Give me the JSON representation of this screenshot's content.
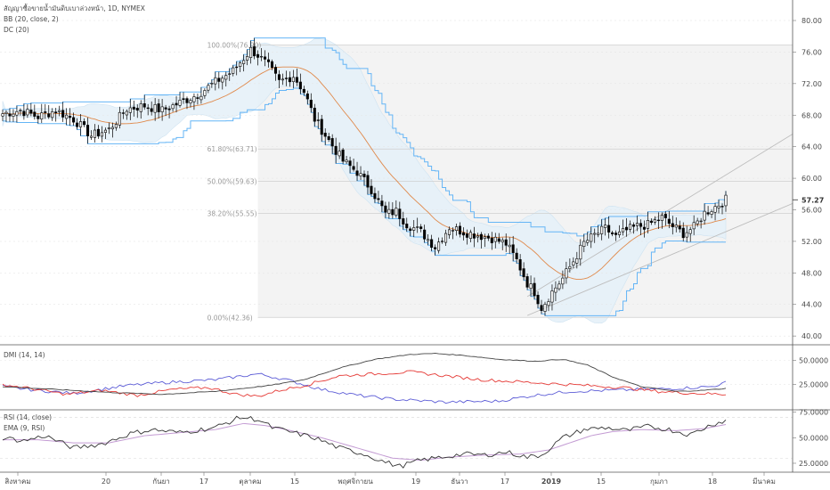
{
  "colors": {
    "up_candle": "#ffffff",
    "down_candle": "#000000",
    "bb_fill": "#e4f0f8",
    "donchian_line": "#64b5f6",
    "basis_line": "#e08a4c",
    "plus_di": "#5b5bd6",
    "minus_di": "#e53935",
    "adx": "#444444",
    "rsi": "#333333",
    "rsi_ema": "#c39bd3",
    "fib_box": "#f3f3f3",
    "channel": "#bdbdbd"
  },
  "chart_data": [
    {
      "type": "candlestick",
      "title": "สัญญาซื้อขายน้ำมันดิบเบาล่วงหน้า, 1D, NYMEX",
      "indicators": [
        "BB (20, close, 2)",
        "DC (20)"
      ],
      "y_axis": {
        "range": [
          39,
          82.6
        ],
        "ticks": [
          "40.00",
          "44.00",
          "48.00",
          "52.00",
          "56.00",
          "60.00",
          "64.00",
          "68.00",
          "72.00",
          "76.00",
          "80.00"
        ],
        "current_price": "57.27"
      },
      "x_axis_labels": [
        "สิงหาคม",
        "20",
        "กันยา",
        "17",
        "ตุลาคม",
        "15",
        "พฤศจิกายน",
        "19",
        "ธันวา",
        "17",
        "2019",
        "15",
        "กุมภา",
        "18",
        "มีนาคม"
      ],
      "fibonacci": [
        {
          "label": "100.00%(76.90)",
          "price": 76.9
        },
        {
          "label": "61.80%(63.71)",
          "price": 63.71
        },
        {
          "label": "50.00%(59.63)",
          "price": 59.63
        },
        {
          "label": "38.20%(55.55)",
          "price": 55.55
        },
        {
          "label": "0.00%(42.36)",
          "price": 42.36
        }
      ],
      "close_anchors": [
        [
          0,
          68.2
        ],
        [
          5,
          68.6
        ],
        [
          10,
          67.8
        ],
        [
          15,
          68.6
        ],
        [
          20,
          67.5
        ],
        [
          25,
          65.4
        ],
        [
          30,
          66.2
        ],
        [
          35,
          68.8
        ],
        [
          40,
          69.2
        ],
        [
          45,
          68.6
        ],
        [
          50,
          69.6
        ],
        [
          55,
          70.6
        ],
        [
          60,
          72.2
        ],
        [
          65,
          73.6
        ],
        [
          70,
          76.3
        ],
        [
          72,
          75.6
        ],
        [
          75,
          74.2
        ],
        [
          78,
          72.2
        ],
        [
          82,
          73.0
        ],
        [
          85,
          71.0
        ],
        [
          88,
          67.5
        ],
        [
          92,
          64.8
        ],
        [
          96,
          62.2
        ],
        [
          100,
          60.8
        ],
        [
          104,
          58.6
        ],
        [
          108,
          55.5
        ],
        [
          111,
          55.8
        ],
        [
          114,
          54.2
        ],
        [
          118,
          53.2
        ],
        [
          122,
          51.3
        ],
        [
          126,
          53.8
        ],
        [
          130,
          53.2
        ],
        [
          134,
          52.8
        ],
        [
          138,
          52.4
        ],
        [
          142,
          51.7
        ],
        [
          145,
          49.6
        ],
        [
          148,
          46.7
        ],
        [
          150,
          45.6
        ],
        [
          152,
          43.6
        ],
        [
          155,
          45.6
        ],
        [
          158,
          47.3
        ],
        [
          161,
          49.5
        ],
        [
          164,
          51.8
        ],
        [
          167,
          52.8
        ],
        [
          170,
          53.6
        ],
        [
          173,
          52.6
        ],
        [
          176,
          53.4
        ],
        [
          179,
          53.9
        ],
        [
          182,
          54.1
        ],
        [
          186,
          55.0
        ],
        [
          189,
          53.9
        ],
        [
          192,
          53.0
        ],
        [
          195,
          53.8
        ],
        [
          198,
          55.6
        ],
        [
          201,
          56.4
        ],
        [
          204,
          57.3
        ]
      ]
    },
    {
      "type": "line",
      "title": "DMI (14, 14)",
      "y_axis": {
        "range": [
          0,
          65
        ],
        "ticks": [
          "25.0000",
          "50.0000"
        ]
      },
      "series": [
        {
          "name": "+DI",
          "anchors": [
            [
              0,
              23
            ],
            [
              10,
              19
            ],
            [
              20,
              16
            ],
            [
              35,
              24
            ],
            [
              45,
              27
            ],
            [
              60,
              30
            ],
            [
              72,
              36
            ],
            [
              80,
              30
            ],
            [
              90,
              20
            ],
            [
              100,
              14
            ],
            [
              110,
              10
            ],
            [
              125,
              7
            ],
            [
              140,
              8
            ],
            [
              150,
              14
            ],
            [
              160,
              18
            ],
            [
              170,
              19
            ],
            [
              180,
              20
            ],
            [
              190,
              21
            ],
            [
              200,
              23
            ],
            [
              204,
              27
            ]
          ]
        },
        {
          "name": "-DI",
          "anchors": [
            [
              0,
              25
            ],
            [
              8,
              21
            ],
            [
              18,
              15
            ],
            [
              28,
              19
            ],
            [
              38,
              14
            ],
            [
              48,
              20
            ],
            [
              58,
              22
            ],
            [
              66,
              15
            ],
            [
              72,
              13
            ],
            [
              78,
              19
            ],
            [
              85,
              24
            ],
            [
              95,
              34
            ],
            [
              105,
              36
            ],
            [
              115,
              38
            ],
            [
              125,
              34
            ],
            [
              135,
              30
            ],
            [
              145,
              28
            ],
            [
              155,
              26
            ],
            [
              165,
              24
            ],
            [
              175,
              22
            ],
            [
              185,
              18
            ],
            [
              195,
              16
            ],
            [
              204,
              15
            ]
          ]
        },
        {
          "name": "ADX",
          "anchors": [
            [
              0,
              23
            ],
            [
              15,
              20
            ],
            [
              30,
              17
            ],
            [
              45,
              15
            ],
            [
              60,
              18
            ],
            [
              75,
              24
            ],
            [
              85,
              30
            ],
            [
              95,
              42
            ],
            [
              105,
              51
            ],
            [
              115,
              56
            ],
            [
              122,
              57
            ],
            [
              130,
              55
            ],
            [
              140,
              51
            ],
            [
              150,
              49
            ],
            [
              158,
              51
            ],
            [
              165,
              45
            ],
            [
              172,
              33
            ],
            [
              180,
              23
            ],
            [
              190,
              18
            ],
            [
              197,
              19
            ],
            [
              204,
              21
            ]
          ]
        }
      ]
    },
    {
      "type": "line",
      "title": "RSI (14, close)",
      "subtitle": "EMA (9, RSI)",
      "y_axis": {
        "range": [
          18,
          76.5
        ],
        "ticks": [
          "25.0000",
          "50.0000",
          "75.0000"
        ]
      },
      "series": [
        {
          "name": "RSI",
          "anchors": [
            [
              0,
              50
            ],
            [
              6,
              47
            ],
            [
              12,
              52
            ],
            [
              20,
              40
            ],
            [
              28,
              44
            ],
            [
              36,
              54
            ],
            [
              42,
              58
            ],
            [
              50,
              55
            ],
            [
              60,
              60
            ],
            [
              67,
              70
            ],
            [
              72,
              68
            ],
            [
              76,
              60
            ],
            [
              82,
              55
            ],
            [
              88,
              50
            ],
            [
              95,
              40
            ],
            [
              102,
              34
            ],
            [
              108,
              26
            ],
            [
              112,
              22
            ],
            [
              118,
              28
            ],
            [
              124,
              31
            ],
            [
              130,
              34
            ],
            [
              136,
              33
            ],
            [
              142,
              36
            ],
            [
              148,
              31
            ],
            [
              152,
              33
            ],
            [
              158,
              50
            ],
            [
              164,
              58
            ],
            [
              170,
              60
            ],
            [
              176,
              57
            ],
            [
              182,
              61
            ],
            [
              188,
              58
            ],
            [
              194,
              53
            ],
            [
              200,
              63
            ],
            [
              204,
              67
            ]
          ]
        },
        {
          "name": "EMA",
          "anchors": [
            [
              0,
              48
            ],
            [
              10,
              48
            ],
            [
              20,
              45
            ],
            [
              30,
              45
            ],
            [
              40,
              52
            ],
            [
              50,
              55
            ],
            [
              60,
              58
            ],
            [
              68,
              64
            ],
            [
              74,
              62
            ],
            [
              80,
              58
            ],
            [
              90,
              50
            ],
            [
              100,
              40
            ],
            [
              110,
              30
            ],
            [
              118,
              28
            ],
            [
              126,
              31
            ],
            [
              136,
              33
            ],
            [
              146,
              34
            ],
            [
              154,
              38
            ],
            [
              160,
              45
            ],
            [
              166,
              52
            ],
            [
              172,
              56
            ],
            [
              180,
              58
            ],
            [
              190,
              57
            ],
            [
              198,
              59
            ],
            [
              204,
              63
            ]
          ]
        }
      ]
    }
  ]
}
